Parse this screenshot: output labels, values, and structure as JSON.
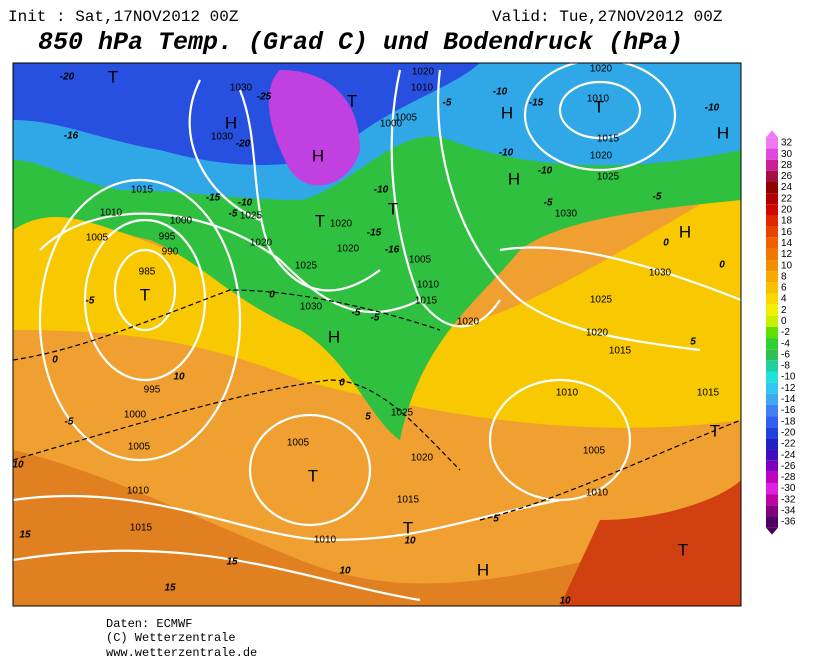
{
  "header": {
    "init": "Init : Sat,17NOV2012 00Z",
    "valid": "Valid: Tue,27NOV2012 00Z",
    "title": "850 hPa Temp. (Grad C) und Bodendruck (hPa)"
  },
  "footer": {
    "source": "Daten: ECMWF",
    "copyright": "(C) Wetterzentrale",
    "url": "www.wetterzentrale.de"
  },
  "colorbar": {
    "ticks": [
      32,
      30,
      28,
      26,
      24,
      22,
      20,
      18,
      16,
      14,
      12,
      10,
      8,
      6,
      4,
      2,
      0,
      -2,
      -4,
      -6,
      -8,
      -10,
      -12,
      -14,
      -16,
      -18,
      -20,
      -22,
      -24,
      -26,
      -28,
      -30,
      -32,
      -34,
      -36
    ],
    "colors": [
      "#f078f0",
      "#e048e0",
      "#c8209a",
      "#a01040",
      "#900000",
      "#b00000",
      "#d00800",
      "#e02800",
      "#e84400",
      "#f06000",
      "#f07800",
      "#f09000",
      "#f8a800",
      "#f8c000",
      "#f8d800",
      "#f0f000",
      "#c8f000",
      "#60e000",
      "#30d030",
      "#30c050",
      "#20d0a0",
      "#20e0e0",
      "#30c8f0",
      "#40a8f0",
      "#4080f0",
      "#3060f0",
      "#2040e0",
      "#2020c0",
      "#4010c0",
      "#8000c0",
      "#c000c0",
      "#e020e0",
      "#c000a0",
      "#800080",
      "#500060"
    ]
  },
  "isobar_labels": [
    1030,
    1030,
    1025,
    1020,
    1015,
    1010,
    1005,
    1000,
    995,
    990,
    985,
    1025,
    1030,
    1020,
    1020,
    1005,
    1000,
    1020,
    1010,
    1005,
    1010,
    1015,
    1020,
    1025,
    1020,
    1015,
    1010,
    1005,
    995,
    1000,
    1005,
    1010,
    1015,
    1020,
    1010,
    1015,
    1020,
    1025,
    1030,
    1030,
    1025,
    1020,
    1015,
    1010,
    1005,
    1010,
    1015
  ],
  "temperature_labels": [
    -20,
    -16,
    -25,
    -20,
    -15,
    -10,
    -5,
    -5,
    0,
    -5,
    10,
    10,
    15,
    15,
    15,
    10,
    10,
    10,
    5,
    5,
    0,
    0,
    -5,
    -5,
    -10,
    -15,
    -16,
    -5,
    -10,
    -15,
    -10,
    -10,
    -5,
    0,
    0,
    -10,
    -5,
    5
  ],
  "pressure_centers": [
    "T",
    "H",
    "H",
    "T",
    "T",
    "T",
    "H",
    "H",
    "H",
    "H",
    "T",
    "H",
    "T",
    "T",
    "H",
    "T",
    "T",
    "T"
  ]
}
